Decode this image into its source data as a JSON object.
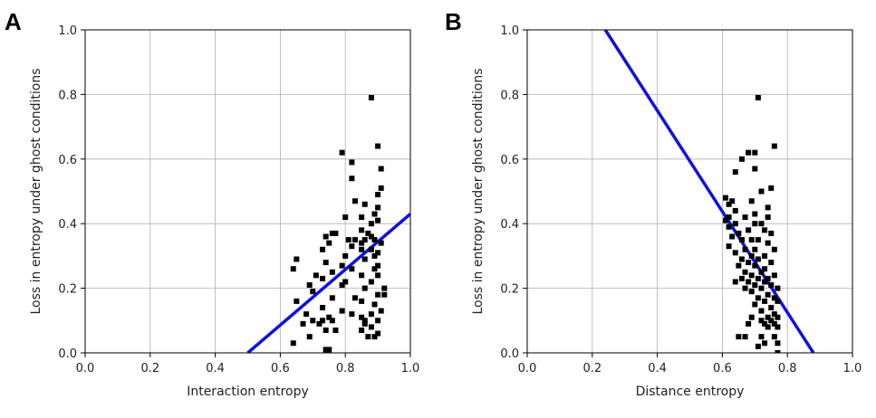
{
  "chart_data": [
    {
      "type": "scatter",
      "panel_label": "A",
      "xlabel": "Interaction entropy",
      "ylabel": "Loss in entropy under ghost conditions",
      "xlim": [
        0.0,
        1.0
      ],
      "ylim": [
        0.0,
        1.0
      ],
      "xticks": [
        "0.0",
        "0.2",
        "0.4",
        "0.6",
        "0.8",
        "1.0"
      ],
      "yticks": [
        "0.0",
        "0.2",
        "0.4",
        "0.6",
        "0.8",
        "1.0"
      ],
      "grid": true,
      "points": [
        [
          0.88,
          0.79
        ],
        [
          0.9,
          0.64
        ],
        [
          0.79,
          0.62
        ],
        [
          0.82,
          0.59
        ],
        [
          0.91,
          0.57
        ],
        [
          0.82,
          0.54
        ],
        [
          0.91,
          0.51
        ],
        [
          0.9,
          0.49
        ],
        [
          0.83,
          0.47
        ],
        [
          0.86,
          0.46
        ],
        [
          0.9,
          0.45
        ],
        [
          0.89,
          0.43
        ],
        [
          0.8,
          0.42
        ],
        [
          0.85,
          0.42
        ],
        [
          0.9,
          0.41
        ],
        [
          0.88,
          0.4
        ],
        [
          0.85,
          0.38
        ],
        [
          0.76,
          0.37
        ],
        [
          0.77,
          0.37
        ],
        [
          0.87,
          0.37
        ],
        [
          0.74,
          0.36
        ],
        [
          0.88,
          0.36
        ],
        [
          0.81,
          0.35
        ],
        [
          0.83,
          0.35
        ],
        [
          0.86,
          0.35
        ],
        [
          0.89,
          0.35
        ],
        [
          0.75,
          0.34
        ],
        [
          0.85,
          0.34
        ],
        [
          0.91,
          0.34
        ],
        [
          0.82,
          0.33
        ],
        [
          0.73,
          0.32
        ],
        [
          0.85,
          0.32
        ],
        [
          0.88,
          0.32
        ],
        [
          0.9,
          0.31
        ],
        [
          0.8,
          0.3
        ],
        [
          0.89,
          0.3
        ],
        [
          0.65,
          0.29
        ],
        [
          0.86,
          0.29
        ],
        [
          0.74,
          0.28
        ],
        [
          0.79,
          0.27
        ],
        [
          0.9,
          0.27
        ],
        [
          0.64,
          0.26
        ],
        [
          0.82,
          0.26
        ],
        [
          0.89,
          0.26
        ],
        [
          0.76,
          0.25
        ],
        [
          0.71,
          0.24
        ],
        [
          0.85,
          0.24
        ],
        [
          0.9,
          0.24
        ],
        [
          0.73,
          0.23
        ],
        [
          0.8,
          0.22
        ],
        [
          0.88,
          0.22
        ],
        [
          0.69,
          0.21
        ],
        [
          0.79,
          0.21
        ],
        [
          0.86,
          0.2
        ],
        [
          0.92,
          0.2
        ],
        [
          0.7,
          0.19
        ],
        [
          0.9,
          0.18
        ],
        [
          0.76,
          0.17
        ],
        [
          0.83,
          0.17
        ],
        [
          0.92,
          0.18
        ],
        [
          0.65,
          0.16
        ],
        [
          0.85,
          0.16
        ],
        [
          0.89,
          0.15
        ],
        [
          0.73,
          0.14
        ],
        [
          0.79,
          0.13
        ],
        [
          0.91,
          0.13
        ],
        [
          0.68,
          0.12
        ],
        [
          0.82,
          0.12
        ],
        [
          0.88,
          0.12
        ],
        [
          0.75,
          0.11
        ],
        [
          0.85,
          0.11
        ],
        [
          0.7,
          0.1
        ],
        [
          0.73,
          0.1
        ],
        [
          0.76,
          0.1
        ],
        [
          0.86,
          0.1
        ],
        [
          0.9,
          0.1
        ],
        [
          0.67,
          0.09
        ],
        [
          0.72,
          0.09
        ],
        [
          0.86,
          0.09
        ],
        [
          0.88,
          0.08
        ],
        [
          0.74,
          0.07
        ],
        [
          0.77,
          0.07
        ],
        [
          0.85,
          0.07
        ],
        [
          0.9,
          0.06
        ],
        [
          0.69,
          0.05
        ],
        [
          0.87,
          0.05
        ],
        [
          0.89,
          0.05
        ],
        [
          0.64,
          0.03
        ],
        [
          0.74,
          0.01
        ],
        [
          0.75,
          0.01
        ]
      ],
      "fit_line": {
        "x": [
          0.5,
          1.0
        ],
        "y": [
          0.0,
          0.43
        ],
        "color": "#1010e0"
      },
      "marker_color": "#000000"
    },
    {
      "type": "scatter",
      "panel_label": "B",
      "xlabel": "Distance entropy",
      "ylabel": "Loss in entropy under ghost conditions",
      "xlim": [
        0.0,
        1.0
      ],
      "ylim": [
        0.0,
        1.0
      ],
      "xticks": [
        "0.0",
        "0.2",
        "0.4",
        "0.6",
        "0.8",
        "1.0"
      ],
      "yticks": [
        "0.0",
        "0.2",
        "0.4",
        "0.6",
        "0.8",
        "1.0"
      ],
      "grid": true,
      "points": [
        [
          0.71,
          0.79
        ],
        [
          0.76,
          0.64
        ],
        [
          0.68,
          0.62
        ],
        [
          0.7,
          0.62
        ],
        [
          0.66,
          0.6
        ],
        [
          0.7,
          0.57
        ],
        [
          0.64,
          0.56
        ],
        [
          0.75,
          0.51
        ],
        [
          0.72,
          0.5
        ],
        [
          0.61,
          0.48
        ],
        [
          0.63,
          0.47
        ],
        [
          0.69,
          0.47
        ],
        [
          0.62,
          0.46
        ],
        [
          0.74,
          0.45
        ],
        [
          0.64,
          0.44
        ],
        [
          0.7,
          0.43
        ],
        [
          0.62,
          0.42
        ],
        [
          0.67,
          0.42
        ],
        [
          0.74,
          0.42
        ],
        [
          0.61,
          0.41
        ],
        [
          0.64,
          0.4
        ],
        [
          0.7,
          0.4
        ],
        [
          0.72,
          0.4
        ],
        [
          0.62,
          0.39
        ],
        [
          0.68,
          0.38
        ],
        [
          0.73,
          0.38
        ],
        [
          0.65,
          0.37
        ],
        [
          0.75,
          0.37
        ],
        [
          0.63,
          0.36
        ],
        [
          0.66,
          0.35
        ],
        [
          0.69,
          0.35
        ],
        [
          0.71,
          0.35
        ],
        [
          0.74,
          0.34
        ],
        [
          0.62,
          0.33
        ],
        [
          0.67,
          0.32
        ],
        [
          0.7,
          0.32
        ],
        [
          0.76,
          0.32
        ],
        [
          0.64,
          0.31
        ],
        [
          0.69,
          0.3
        ],
        [
          0.73,
          0.3
        ],
        [
          0.66,
          0.29
        ],
        [
          0.71,
          0.29
        ],
        [
          0.68,
          0.28
        ],
        [
          0.75,
          0.28
        ],
        [
          0.65,
          0.27
        ],
        [
          0.7,
          0.27
        ],
        [
          0.73,
          0.26
        ],
        [
          0.67,
          0.25
        ],
        [
          0.72,
          0.25
        ],
        [
          0.69,
          0.24
        ],
        [
          0.76,
          0.24
        ],
        [
          0.66,
          0.23
        ],
        [
          0.71,
          0.23
        ],
        [
          0.74,
          0.23
        ],
        [
          0.64,
          0.22
        ],
        [
          0.68,
          0.22
        ],
        [
          0.73,
          0.22
        ],
        [
          0.7,
          0.21
        ],
        [
          0.75,
          0.21
        ],
        [
          0.67,
          0.2
        ],
        [
          0.72,
          0.2
        ],
        [
          0.77,
          0.2
        ],
        [
          0.69,
          0.19
        ],
        [
          0.74,
          0.18
        ],
        [
          0.71,
          0.17
        ],
        [
          0.76,
          0.17
        ],
        [
          0.73,
          0.16
        ],
        [
          0.77,
          0.16
        ],
        [
          0.7,
          0.15
        ],
        [
          0.75,
          0.14
        ],
        [
          0.72,
          0.13
        ],
        [
          0.76,
          0.12
        ],
        [
          0.69,
          0.11
        ],
        [
          0.74,
          0.11
        ],
        [
          0.77,
          0.11
        ],
        [
          0.72,
          0.1
        ],
        [
          0.75,
          0.1
        ],
        [
          0.68,
          0.09
        ],
        [
          0.73,
          0.09
        ],
        [
          0.76,
          0.09
        ],
        [
          0.74,
          0.08
        ],
        [
          0.77,
          0.08
        ],
        [
          0.65,
          0.05
        ],
        [
          0.67,
          0.05
        ],
        [
          0.72,
          0.05
        ],
        [
          0.76,
          0.05
        ],
        [
          0.73,
          0.03
        ],
        [
          0.77,
          0.03
        ],
        [
          0.71,
          0.02
        ],
        [
          0.77,
          0.0
        ]
      ],
      "fit_line": {
        "x": [
          0.24,
          0.88
        ],
        "y": [
          1.0,
          0.0
        ],
        "color": "#1010e0"
      },
      "marker_color": "#000000"
    }
  ]
}
